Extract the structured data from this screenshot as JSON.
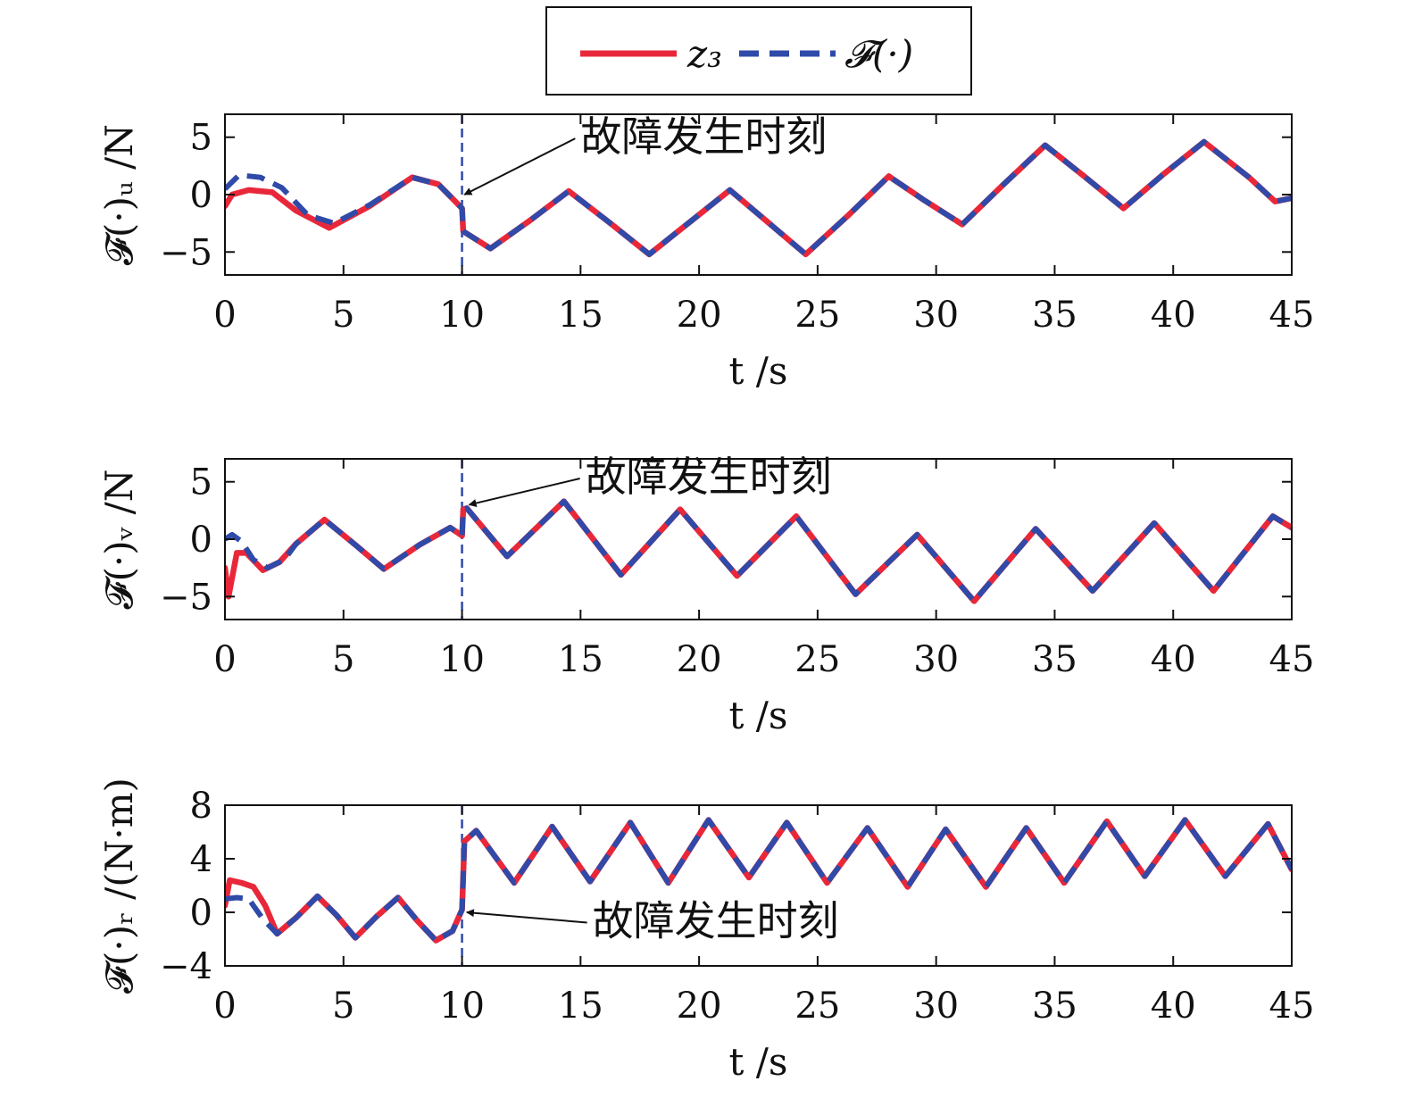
{
  "colors": {
    "z3": "#e8283a",
    "F": "#2f4aa8",
    "fault_line": "#2f4aa8"
  },
  "legend": {
    "z3_label": "z₃",
    "F_label": "𝓕(·)"
  },
  "annotation_text": "故障发生时刻",
  "chart_data": [
    {
      "type": "line",
      "ylabel": "𝓕(·)ᵤ /N",
      "xlabel": "t /s",
      "xlim": [
        0,
        45
      ],
      "ylim": [
        -7,
        7
      ],
      "xticks": [
        0,
        5,
        10,
        15,
        20,
        25,
        30,
        35,
        40,
        45
      ],
      "yticks": [
        -5,
        0,
        5
      ],
      "fault_time": 10,
      "series": [
        {
          "name": "z₃",
          "style": "solid",
          "points": [
            [
              0,
              -1.0
            ],
            [
              0.3,
              0.0
            ],
            [
              1,
              0.4
            ],
            [
              2,
              0.2
            ],
            [
              3,
              -1.4
            ],
            [
              4.4,
              -2.9
            ],
            [
              6.1,
              -1.0
            ],
            [
              7.9,
              1.5
            ],
            [
              9.0,
              0.9
            ],
            [
              10,
              -1.2
            ],
            [
              10.05,
              -3.2
            ],
            [
              11.2,
              -4.7
            ],
            [
              12.9,
              -2.2
            ],
            [
              14.5,
              0.3
            ],
            [
              16.2,
              -2.4
            ],
            [
              17.9,
              -5.2
            ],
            [
              19.6,
              -2.4
            ],
            [
              21.3,
              0.4
            ],
            [
              22.9,
              -2.4
            ],
            [
              24.5,
              -5.2
            ],
            [
              26.3,
              -1.8
            ],
            [
              28.0,
              1.6
            ],
            [
              29.5,
              -0.5
            ],
            [
              31.1,
              -2.6
            ],
            [
              32.8,
              0.8
            ],
            [
              34.6,
              4.3
            ],
            [
              36.3,
              1.5
            ],
            [
              37.9,
              -1.2
            ],
            [
              39.6,
              1.8
            ],
            [
              41.3,
              4.6
            ],
            [
              43.2,
              1.5
            ],
            [
              44.3,
              -0.6
            ],
            [
              45,
              -0.3
            ]
          ]
        },
        {
          "name": "𝓕(·)",
          "style": "dashed",
          "points": [
            [
              0,
              0.5
            ],
            [
              0.6,
              1.7
            ],
            [
              1.5,
              1.5
            ],
            [
              2.4,
              0.6
            ],
            [
              3.5,
              -1.8
            ],
            [
              4.6,
              -2.5
            ],
            [
              6.1,
              -0.9
            ],
            [
              7.9,
              1.5
            ],
            [
              9.0,
              0.9
            ],
            [
              10,
              -1.2
            ],
            [
              10.05,
              -3.2
            ],
            [
              11.2,
              -4.7
            ],
            [
              12.9,
              -2.2
            ],
            [
              14.5,
              0.3
            ],
            [
              16.2,
              -2.4
            ],
            [
              17.9,
              -5.2
            ],
            [
              19.6,
              -2.4
            ],
            [
              21.3,
              0.4
            ],
            [
              22.9,
              -2.4
            ],
            [
              24.5,
              -5.2
            ],
            [
              26.3,
              -1.8
            ],
            [
              28.0,
              1.6
            ],
            [
              29.5,
              -0.5
            ],
            [
              31.1,
              -2.6
            ],
            [
              32.8,
              0.8
            ],
            [
              34.6,
              4.3
            ],
            [
              36.3,
              1.5
            ],
            [
              37.9,
              -1.2
            ],
            [
              39.6,
              1.8
            ],
            [
              41.3,
              4.6
            ],
            [
              43.2,
              1.5
            ],
            [
              44.3,
              -0.6
            ],
            [
              45,
              -0.3
            ]
          ]
        }
      ],
      "annotation": {
        "text": "故障发生时刻",
        "arrow_tip": [
          10.1,
          0.0
        ],
        "text_at": [
          15,
          3.8
        ]
      }
    },
    {
      "type": "line",
      "ylabel": "𝓕(·)ᵥ /N",
      "xlabel": "t /s",
      "xlim": [
        0,
        45
      ],
      "ylim": [
        -7,
        7
      ],
      "xticks": [
        0,
        5,
        10,
        15,
        20,
        25,
        30,
        35,
        40,
        45
      ],
      "yticks": [
        -5,
        0,
        5
      ],
      "fault_time": 10,
      "series": [
        {
          "name": "z₃",
          "style": "solid",
          "points": [
            [
              0,
              -2.5
            ],
            [
              0.15,
              -5.0
            ],
            [
              0.5,
              -1.2
            ],
            [
              0.9,
              -1.2
            ],
            [
              1.6,
              -2.7
            ],
            [
              2.3,
              -2.0
            ],
            [
              3.0,
              -0.4
            ],
            [
              4.2,
              1.7
            ],
            [
              5.5,
              -0.5
            ],
            [
              6.7,
              -2.6
            ],
            [
              8.2,
              -0.5
            ],
            [
              9.5,
              1.0
            ],
            [
              10,
              0.3
            ],
            [
              10.05,
              2.6
            ],
            [
              10.2,
              2.7
            ],
            [
              11.9,
              -1.5
            ],
            [
              14.3,
              3.3
            ],
            [
              16.7,
              -3.1
            ],
            [
              19.2,
              2.6
            ],
            [
              21.6,
              -3.2
            ],
            [
              24.1,
              2.0
            ],
            [
              26.6,
              -4.8
            ],
            [
              29.2,
              0.4
            ],
            [
              31.6,
              -5.4
            ],
            [
              34.2,
              0.9
            ],
            [
              36.6,
              -4.5
            ],
            [
              39.2,
              1.4
            ],
            [
              41.7,
              -4.5
            ],
            [
              44.2,
              2.0
            ],
            [
              45,
              1.0
            ]
          ]
        },
        {
          "name": "𝓕(·)",
          "style": "dashed",
          "points": [
            [
              0,
              0.0
            ],
            [
              0.3,
              0.4
            ],
            [
              0.7,
              -0.2
            ],
            [
              1.2,
              -1.8
            ],
            [
              1.8,
              -2.5
            ],
            [
              2.5,
              -1.8
            ],
            [
              3.0,
              -0.4
            ],
            [
              4.2,
              1.7
            ],
            [
              5.5,
              -0.5
            ],
            [
              6.7,
              -2.6
            ],
            [
              8.2,
              -0.5
            ],
            [
              9.5,
              1.0
            ],
            [
              10,
              0.3
            ],
            [
              10.05,
              2.6
            ],
            [
              10.2,
              2.7
            ],
            [
              11.9,
              -1.5
            ],
            [
              14.3,
              3.3
            ],
            [
              16.7,
              -3.1
            ],
            [
              19.2,
              2.6
            ],
            [
              21.6,
              -3.2
            ],
            [
              24.1,
              2.0
            ],
            [
              26.6,
              -4.8
            ],
            [
              29.2,
              0.4
            ],
            [
              31.6,
              -5.4
            ],
            [
              34.2,
              0.9
            ],
            [
              36.6,
              -4.5
            ],
            [
              39.2,
              1.4
            ],
            [
              41.7,
              -4.5
            ],
            [
              44.2,
              2.0
            ],
            [
              45,
              1.0
            ]
          ]
        }
      ],
      "annotation": {
        "text": "故障发生时刻",
        "arrow_tip": [
          10.3,
          3.0
        ],
        "text_at": [
          15.2,
          4.2
        ]
      }
    },
    {
      "type": "line",
      "ylabel": "𝓕(·)ᵣ /(N·m)",
      "xlabel": "t /s",
      "xlim": [
        0,
        45
      ],
      "ylim": [
        -4,
        8
      ],
      "xticks": [
        0,
        5,
        10,
        15,
        20,
        25,
        30,
        35,
        40,
        45
      ],
      "yticks": [
        -4,
        0,
        4,
        8
      ],
      "fault_time": 10,
      "series": [
        {
          "name": "z₃",
          "style": "solid",
          "points": [
            [
              0,
              0.5
            ],
            [
              0.2,
              2.4
            ],
            [
              0.7,
              2.2
            ],
            [
              1.2,
              1.9
            ],
            [
              1.7,
              0.5
            ],
            [
              2.2,
              -1.6
            ],
            [
              3.0,
              -0.4
            ],
            [
              3.9,
              1.2
            ],
            [
              4.7,
              -0.2
            ],
            [
              5.5,
              -1.9
            ],
            [
              6.4,
              -0.3
            ],
            [
              7.3,
              1.1
            ],
            [
              8.1,
              -0.6
            ],
            [
              8.9,
              -2.1
            ],
            [
              9.6,
              -1.4
            ],
            [
              10,
              0.2
            ],
            [
              10.1,
              5.3
            ],
            [
              10.6,
              6.1
            ],
            [
              12.2,
              2.2
            ],
            [
              13.8,
              6.4
            ],
            [
              15.4,
              2.3
            ],
            [
              17.1,
              6.7
            ],
            [
              18.7,
              2.2
            ],
            [
              20.4,
              6.9
            ],
            [
              22.1,
              2.6
            ],
            [
              23.7,
              6.7
            ],
            [
              25.4,
              2.2
            ],
            [
              27.1,
              6.3
            ],
            [
              28.8,
              1.9
            ],
            [
              30.4,
              6.2
            ],
            [
              32.1,
              1.9
            ],
            [
              33.8,
              6.3
            ],
            [
              35.4,
              2.2
            ],
            [
              37.2,
              6.8
            ],
            [
              38.8,
              2.7
            ],
            [
              40.5,
              6.9
            ],
            [
              42.2,
              2.7
            ],
            [
              44.0,
              6.6
            ],
            [
              45,
              3.2
            ]
          ]
        },
        {
          "name": "𝓕(·)",
          "style": "dashed",
          "points": [
            [
              0,
              1.0
            ],
            [
              0.5,
              1.1
            ],
            [
              1.0,
              1.0
            ],
            [
              1.6,
              -0.5
            ],
            [
              2.2,
              -1.6
            ],
            [
              3.0,
              -0.4
            ],
            [
              3.9,
              1.2
            ],
            [
              4.7,
              -0.2
            ],
            [
              5.5,
              -1.9
            ],
            [
              6.4,
              -0.3
            ],
            [
              7.3,
              1.1
            ],
            [
              8.1,
              -0.6
            ],
            [
              8.9,
              -2.1
            ],
            [
              9.6,
              -1.4
            ],
            [
              10,
              0.2
            ],
            [
              10.1,
              5.3
            ],
            [
              10.6,
              6.1
            ],
            [
              12.2,
              2.2
            ],
            [
              13.8,
              6.4
            ],
            [
              15.4,
              2.3
            ],
            [
              17.1,
              6.7
            ],
            [
              18.7,
              2.2
            ],
            [
              20.4,
              6.9
            ],
            [
              22.1,
              2.6
            ],
            [
              23.7,
              6.7
            ],
            [
              25.4,
              2.2
            ],
            [
              27.1,
              6.3
            ],
            [
              28.8,
              1.9
            ],
            [
              30.4,
              6.2
            ],
            [
              32.1,
              1.9
            ],
            [
              33.8,
              6.3
            ],
            [
              35.4,
              2.2
            ],
            [
              37.2,
              6.8
            ],
            [
              38.8,
              2.7
            ],
            [
              40.5,
              6.9
            ],
            [
              42.2,
              2.7
            ],
            [
              44.0,
              6.6
            ],
            [
              45,
              3.2
            ]
          ]
        }
      ],
      "annotation": {
        "text": "故障发生时刻",
        "arrow_tip": [
          10.2,
          0.0
        ],
        "text_at": [
          15.5,
          -1.7
        ]
      }
    }
  ]
}
